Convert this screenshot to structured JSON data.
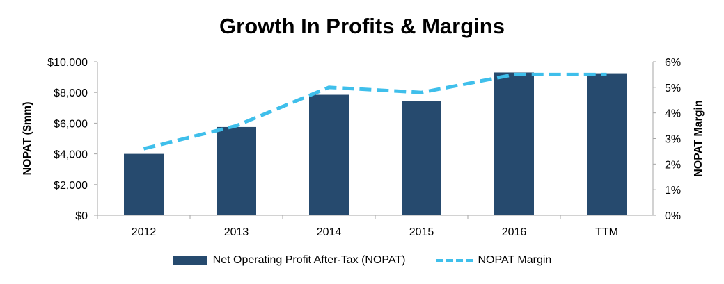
{
  "chart_data": {
    "type": "bar",
    "title": "Growth In Profits & Margins",
    "categories": [
      "2012",
      "2013",
      "2014",
      "2015",
      "2016",
      "TTM"
    ],
    "series": [
      {
        "name": "Net Operating Profit After-Tax (NOPAT)",
        "type": "bar",
        "axis": "left",
        "values": [
          4000,
          5750,
          7850,
          7450,
          9300,
          9250
        ],
        "color": "#264a6e"
      },
      {
        "name": "NOPAT Margin",
        "type": "line",
        "style": "dashed",
        "axis": "right",
        "values": [
          2.6,
          3.5,
          5.0,
          4.8,
          5.5,
          5.5
        ],
        "color": "#3fbfeb"
      }
    ],
    "ylabel": "NOPAT ($mm)",
    "y2label": "NOPAT Margin",
    "ylim": [
      0,
      10000
    ],
    "y2lim": [
      0,
      6
    ],
    "yticks": [
      "$0",
      "$2,000",
      "$4,000",
      "$6,000",
      "$8,000",
      "$10,000"
    ],
    "y2ticks": [
      "0%",
      "1%",
      "2%",
      "3%",
      "4%",
      "5%",
      "6%"
    ],
    "grid": false,
    "legend": "bottom"
  }
}
